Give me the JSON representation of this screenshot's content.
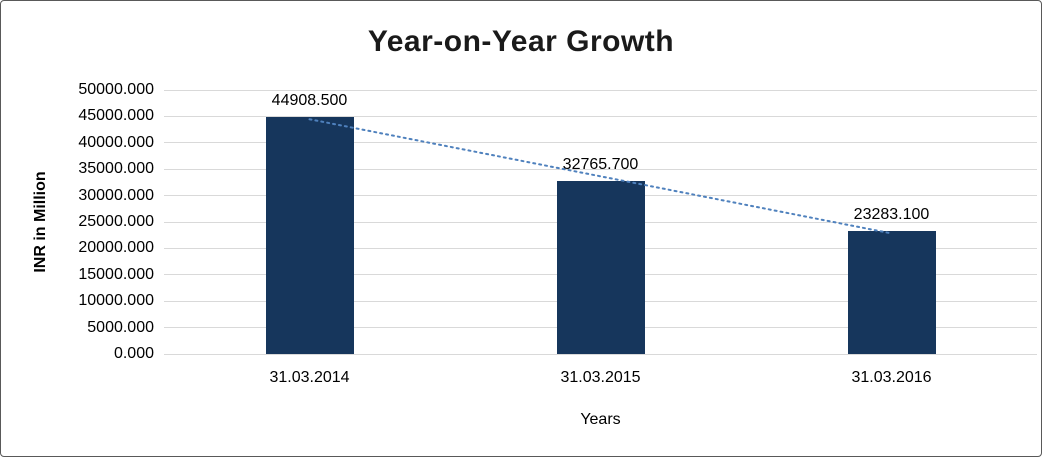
{
  "chart_data": {
    "type": "bar",
    "title": "Year-on-Year Growth",
    "xlabel": "Years",
    "ylabel": "INR in Million",
    "categories": [
      "31.03.2014",
      "31.03.2015",
      "31.03.2016"
    ],
    "values": [
      44908.5,
      32765.7,
      23283.1
    ],
    "data_labels": [
      "44908.500",
      "32765.700",
      "23283.100"
    ],
    "ylim": [
      0,
      50000
    ],
    "ytick_step": 5000,
    "ytick_labels": [
      "0.000",
      "5000.000",
      "10000.000",
      "15000.000",
      "20000.000",
      "25000.000",
      "30000.000",
      "35000.000",
      "40000.000",
      "45000.000",
      "50000.000"
    ],
    "grid": true,
    "legend": "none",
    "trendline": {
      "type": "linear",
      "style": "dotted",
      "color": "#4f81bd"
    },
    "colors": {
      "bar": "#16365c",
      "gridline": "#d9d9d9",
      "axis_text": "#000000",
      "title": "#1a1a1a",
      "background": "#ffffff",
      "border": "#595959"
    }
  }
}
